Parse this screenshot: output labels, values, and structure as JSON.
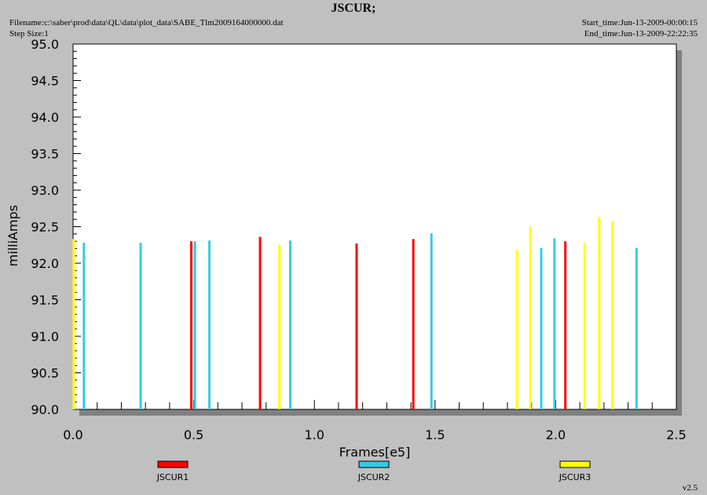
{
  "header": {
    "title": "JSCUR;",
    "filename": "Filename:c:\\saber\\prod\\data\\QL\\data\\plot_data\\SABE_Tlm2009164000000.dat",
    "step_size": "Step Size:1",
    "start_time": "Start_time:Jun-13-2009-00:00:15",
    "end_time": "End_time:Jun-13-2009-22:22:35"
  },
  "version": "v2.5",
  "chart_data": {
    "type": "bar",
    "title": "JSCUR;",
    "xlabel": "Frames[e5]",
    "ylabel": "milliAmps",
    "xlim": [
      0.0,
      2.5
    ],
    "ylim": [
      90.0,
      95.0
    ],
    "xticks": [
      "0.0",
      "0.5",
      "1.0",
      "1.5",
      "2.0",
      "2.5"
    ],
    "yticks": [
      "90.0",
      "90.5",
      "91.0",
      "91.5",
      "92.0",
      "92.5",
      "93.0",
      "93.5",
      "94.0",
      "94.5",
      "95.0"
    ],
    "grid": false,
    "legend_position": "bottom",
    "series": [
      {
        "name": "JSCUR1",
        "color": "#ff0000",
        "points": [
          [
            0.49,
            92.3
          ],
          [
            0.775,
            92.36
          ],
          [
            1.175,
            92.27
          ],
          [
            1.41,
            92.33
          ],
          [
            2.04,
            92.3
          ]
        ]
      },
      {
        "name": "JSCUR2",
        "color": "#33cce6",
        "points": [
          [
            0.045,
            92.28
          ],
          [
            0.28,
            92.28
          ],
          [
            0.505,
            92.3
          ],
          [
            0.565,
            92.31
          ],
          [
            0.9,
            92.31
          ],
          [
            1.485,
            92.41
          ],
          [
            1.94,
            92.21
          ],
          [
            1.995,
            92.34
          ],
          [
            2.335,
            92.21
          ]
        ]
      },
      {
        "name": "JSCUR3",
        "color": "#ffff00",
        "points": [
          [
            0.003,
            92.33
          ],
          [
            0.855,
            92.25
          ],
          [
            1.84,
            92.18
          ],
          [
            1.895,
            92.5
          ],
          [
            2.12,
            92.28
          ],
          [
            2.18,
            92.63
          ],
          [
            2.235,
            92.57
          ]
        ]
      }
    ]
  }
}
